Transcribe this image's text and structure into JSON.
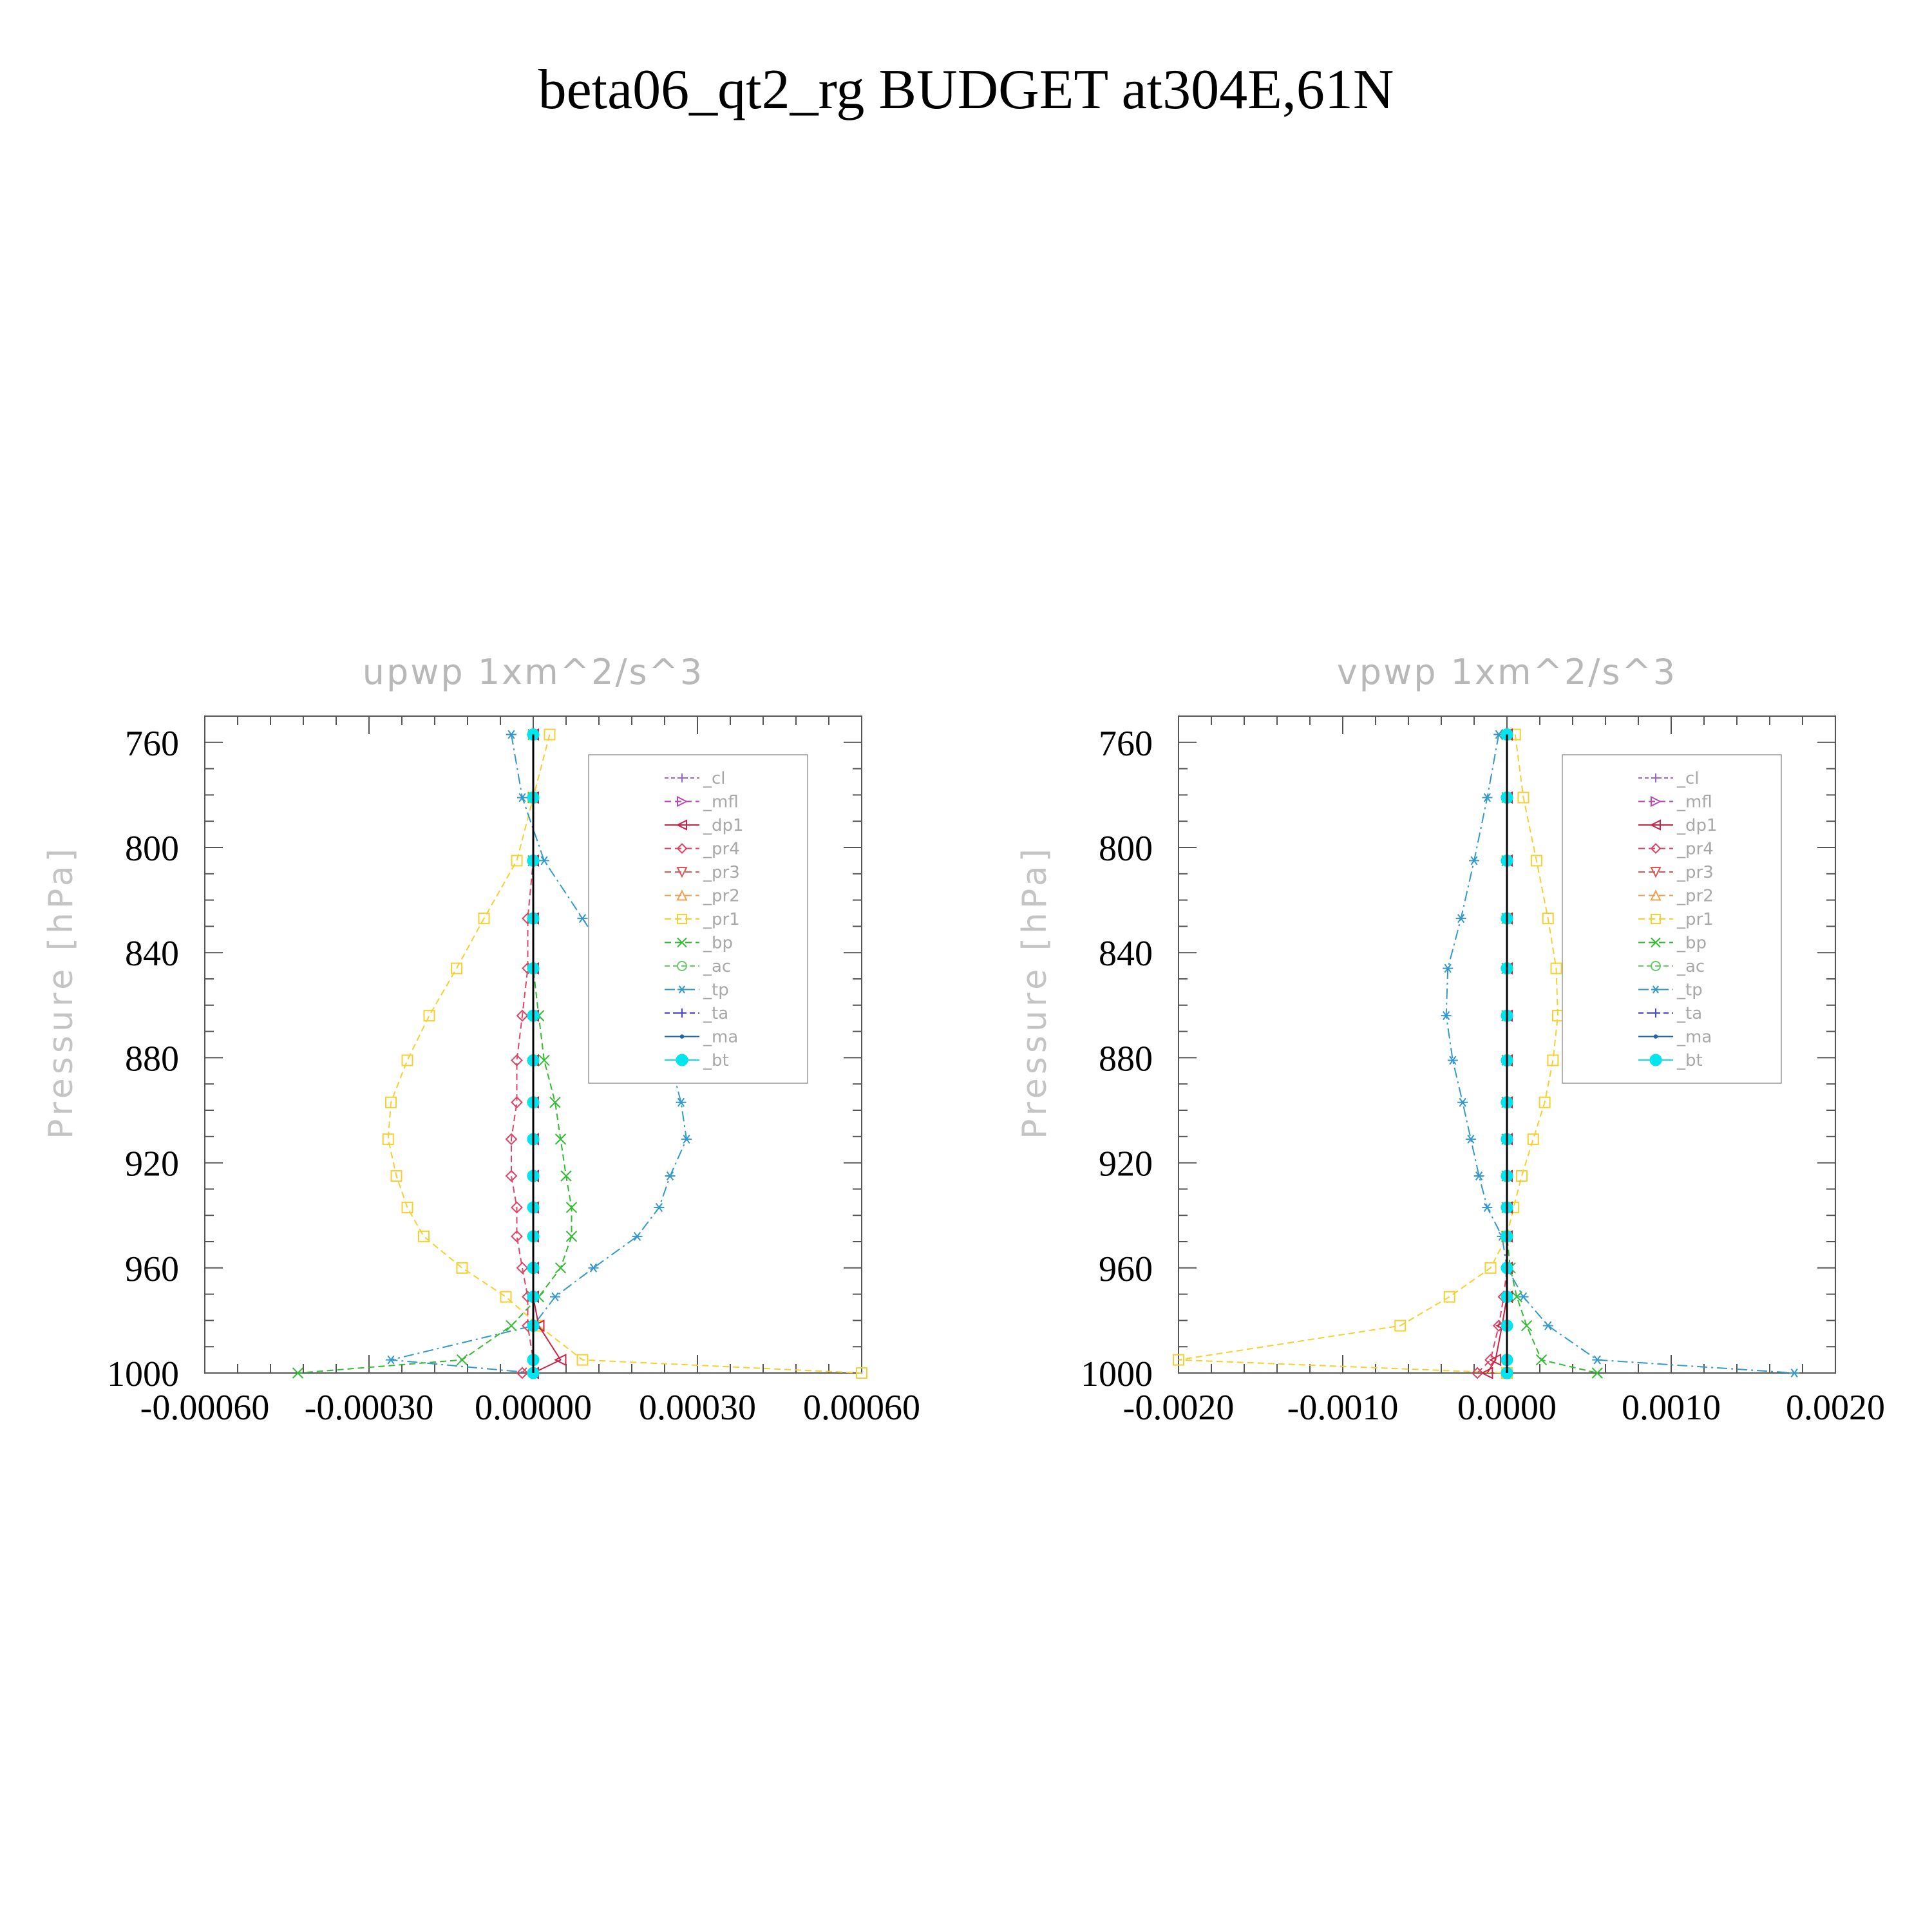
{
  "title": "beta06_qt2_rg  BUDGET at304E,61N",
  "legend_entries": [
    {
      "name": "_cl",
      "color": "#9966cc",
      "marker": "plus"
    },
    {
      "name": "_mfl",
      "color": "#bb44bb",
      "marker": "tri-right"
    },
    {
      "name": "_dp1",
      "color": "#cc2244",
      "marker": "tri-left"
    },
    {
      "name": "_pr4",
      "color": "#dd4466",
      "marker": "diamond"
    },
    {
      "name": "_pr3",
      "color": "#dd5555",
      "marker": "tri-down"
    },
    {
      "name": "_pr2",
      "color": "#f0a050",
      "marker": "tri-up"
    },
    {
      "name": "_pr1",
      "color": "#f5d030",
      "marker": "square"
    },
    {
      "name": "_bp",
      "color": "#33bb33",
      "marker": "x"
    },
    {
      "name": "_ac",
      "color": "#66cc66",
      "marker": "circle"
    },
    {
      "name": "_tp",
      "color": "#3399cc",
      "marker": "star"
    },
    {
      "name": "_ta",
      "color": "#4444cc",
      "marker": "plus"
    },
    {
      "name": "_ma",
      "color": "#2266aa",
      "marker": "dot"
    },
    {
      "name": "_bt",
      "color": "#00e5ee",
      "marker": "filled-circle"
    }
  ],
  "chart_data": [
    {
      "type": "line",
      "title": "upwp   1xm^2/s^3",
      "ylabel": "Pressure [hPa]",
      "xlabel": "",
      "xlim": [
        -0.0006,
        0.0006
      ],
      "ylim": [
        1000,
        750
      ],
      "x_ticks": [
        "-0.00060",
        "-0.00030",
        "0.00000",
        "0.00030",
        "0.00060"
      ],
      "x_tick_values": [
        -0.0006,
        -0.0003,
        0.0,
        0.0003,
        0.0006
      ],
      "y_ticks": [
        "760",
        "800",
        "840",
        "880",
        "920",
        "960",
        "1000"
      ],
      "y_tick_values": [
        760,
        800,
        840,
        880,
        920,
        960,
        1000
      ],
      "levels": [
        757,
        781,
        805,
        827,
        846,
        864,
        881,
        897,
        911,
        925,
        937,
        948,
        960,
        971,
        982,
        995,
        1000
      ],
      "series": [
        {
          "name": "_pr1",
          "x": [
            3e-05,
            0.0,
            -3e-05,
            -9e-05,
            -0.00014,
            -0.00019,
            -0.00023,
            -0.00026,
            -0.000265,
            -0.00025,
            -0.00023,
            -0.0002,
            -0.00013,
            -5e-05,
            1e-05,
            9e-05,
            0.0006
          ]
        },
        {
          "name": "_tp",
          "x": [
            -4e-05,
            -2e-05,
            2e-05,
            9e-05,
            0.00015,
            0.0002,
            0.00025,
            0.00027,
            0.00028,
            0.00025,
            0.00023,
            0.00019,
            0.00011,
            4e-05,
            0.0,
            -0.00026,
            0.0
          ]
        },
        {
          "name": "_bp",
          "x": [
            0.0,
            0.0,
            0.0,
            0.0,
            0.0,
            1e-05,
            2e-05,
            4e-05,
            5e-05,
            6e-05,
            7e-05,
            7e-05,
            5e-05,
            1e-05,
            -4e-05,
            -0.00013,
            -0.00043
          ]
        },
        {
          "name": "_pr4",
          "x": [
            0.0,
            0.0,
            0.0,
            -1e-05,
            -1e-05,
            -2e-05,
            -3e-05,
            -3e-05,
            -4e-05,
            -4e-05,
            -3e-05,
            -3e-05,
            -2e-05,
            -1e-05,
            -1e-05,
            0.0,
            -2e-05
          ]
        },
        {
          "name": "_dp1",
          "x": [
            0.0,
            0.0,
            0.0,
            0.0,
            0.0,
            0.0,
            0.0,
            0.0,
            0.0,
            0.0,
            0.0,
            0.0,
            0.0,
            0.0,
            1e-05,
            5e-05,
            0.0
          ]
        },
        {
          "name": "_ac",
          "x": [
            0.0,
            0.0,
            0.0,
            0.0,
            0.0,
            0.0,
            0.0,
            0.0,
            0.0,
            0.0,
            0.0,
            0.0,
            0.0,
            0.0,
            0.0,
            0.0,
            0.0
          ]
        },
        {
          "name": "_bt",
          "x": [
            0.0,
            0.0,
            0.0,
            0.0,
            0.0,
            0.0,
            0.0,
            0.0,
            0.0,
            0.0,
            0.0,
            0.0,
            0.0,
            0.0,
            0.0,
            0.0,
            0.0
          ]
        }
      ]
    },
    {
      "type": "line",
      "title": "vpwp   1xm^2/s^3",
      "ylabel": "Pressure [hPa]",
      "xlabel": "",
      "xlim": [
        -0.002,
        0.002
      ],
      "ylim": [
        1000,
        750
      ],
      "x_ticks": [
        "-0.0020",
        "-0.0010",
        "0.0000",
        "0.0010",
        "0.0020"
      ],
      "x_tick_values": [
        -0.002,
        -0.001,
        0.0,
        0.001,
        0.002
      ],
      "y_ticks": [
        "760",
        "800",
        "840",
        "880",
        "920",
        "960",
        "1000"
      ],
      "y_tick_values": [
        760,
        800,
        840,
        880,
        920,
        960,
        1000
      ],
      "levels": [
        757,
        781,
        805,
        827,
        846,
        864,
        881,
        897,
        911,
        925,
        937,
        948,
        960,
        971,
        982,
        995,
        1000
      ],
      "series": [
        {
          "name": "_pr1",
          "x": [
            5e-05,
            0.0001,
            0.00018,
            0.00025,
            0.0003,
            0.00031,
            0.00028,
            0.00023,
            0.00016,
            9e-05,
            4e-05,
            0.0,
            -0.0001,
            -0.00035,
            -0.00065,
            -0.002,
            0.0
          ]
        },
        {
          "name": "_tp",
          "x": [
            -5e-05,
            -0.00012,
            -0.0002,
            -0.00028,
            -0.00036,
            -0.00037,
            -0.00033,
            -0.00027,
            -0.00022,
            -0.00017,
            -0.00012,
            -3e-05,
            0.0,
            0.0001,
            0.00025,
            0.00055,
            0.00175
          ]
        },
        {
          "name": "_bp",
          "x": [
            0.0,
            0.0,
            0.0,
            0.0,
            0.0,
            0.0,
            0.0,
            0.0,
            0.0,
            0.0,
            0.0,
            0.0,
            2e-05,
            6e-05,
            0.00012,
            0.00021,
            0.00055
          ]
        },
        {
          "name": "_pr4",
          "x": [
            0.0,
            0.0,
            0.0,
            0.0,
            0.0,
            0.0,
            0.0,
            0.0,
            0.0,
            0.0,
            0.0,
            0.0,
            0.0,
            -2e-05,
            -5e-05,
            -0.0001,
            -0.00018
          ]
        },
        {
          "name": "_dp1",
          "x": [
            0.0,
            0.0,
            0.0,
            0.0,
            0.0,
            0.0,
            0.0,
            0.0,
            0.0,
            0.0,
            0.0,
            0.0,
            0.0,
            0.0,
            -3e-05,
            -7e-05,
            -0.00012
          ]
        },
        {
          "name": "_ac",
          "x": [
            0.0,
            0.0,
            0.0,
            0.0,
            0.0,
            0.0,
            0.0,
            0.0,
            0.0,
            0.0,
            0.0,
            0.0,
            0.0,
            0.0,
            0.0,
            0.0,
            0.0
          ]
        },
        {
          "name": "_bt",
          "x": [
            0.0,
            0.0,
            0.0,
            0.0,
            0.0,
            0.0,
            0.0,
            0.0,
            0.0,
            0.0,
            0.0,
            0.0,
            0.0,
            0.0,
            0.0,
            0.0,
            0.0
          ]
        }
      ]
    }
  ]
}
